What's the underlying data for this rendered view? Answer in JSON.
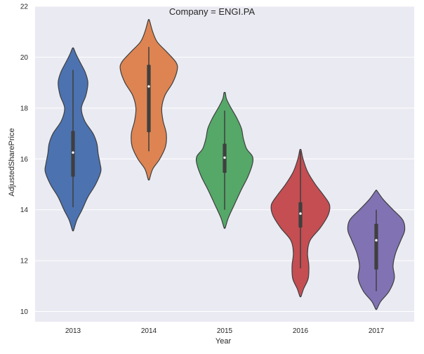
{
  "chart_data": {
    "type": "violin",
    "title": "Company = ENGI.PA",
    "xlabel": "Year",
    "ylabel": "AdjustedSharePrice",
    "ylim": [
      9.6,
      22
    ],
    "yticks": [
      10,
      12,
      14,
      16,
      18,
      20,
      22
    ],
    "grid": true,
    "background": "#eaeaf2",
    "categories": [
      "2013",
      "2014",
      "2015",
      "2016",
      "2017"
    ],
    "violins": [
      {
        "category": "2013",
        "color": "#4c72b0",
        "median": 16.25,
        "q1": 15.3,
        "q3": 17.1,
        "whisker_low": 14.1,
        "whisker_high": 19.5,
        "profile": [
          [
            13.2,
            0.02
          ],
          [
            13.6,
            0.12
          ],
          [
            14.0,
            0.28
          ],
          [
            14.5,
            0.46
          ],
          [
            15.0,
            0.7
          ],
          [
            15.5,
            0.86
          ],
          [
            15.8,
            0.84
          ],
          [
            16.2,
            0.78
          ],
          [
            16.6,
            0.74
          ],
          [
            17.0,
            0.62
          ],
          [
            17.5,
            0.36
          ],
          [
            18.0,
            0.26
          ],
          [
            18.5,
            0.4
          ],
          [
            19.0,
            0.46
          ],
          [
            19.4,
            0.38
          ],
          [
            19.8,
            0.22
          ],
          [
            20.1,
            0.1
          ],
          [
            20.35,
            0.02
          ]
        ]
      },
      {
        "category": "2014",
        "color": "#dd8452",
        "median": 18.85,
        "q1": 17.05,
        "q3": 19.7,
        "whisker_low": 16.3,
        "whisker_high": 20.4,
        "profile": [
          [
            15.2,
            0.02
          ],
          [
            15.6,
            0.12
          ],
          [
            16.0,
            0.34
          ],
          [
            16.5,
            0.52
          ],
          [
            17.0,
            0.54
          ],
          [
            17.5,
            0.44
          ],
          [
            18.0,
            0.4
          ],
          [
            18.5,
            0.5
          ],
          [
            19.0,
            0.74
          ],
          [
            19.5,
            0.88
          ],
          [
            19.8,
            0.84
          ],
          [
            20.2,
            0.56
          ],
          [
            20.6,
            0.26
          ],
          [
            21.0,
            0.12
          ],
          [
            21.45,
            0.02
          ]
        ]
      },
      {
        "category": "2015",
        "color": "#55a868",
        "median": 16.05,
        "q1": 15.45,
        "q3": 16.6,
        "whisker_low": 14.0,
        "whisker_high": 17.9,
        "profile": [
          [
            13.3,
            0.02
          ],
          [
            13.7,
            0.12
          ],
          [
            14.2,
            0.3
          ],
          [
            14.8,
            0.52
          ],
          [
            15.3,
            0.72
          ],
          [
            15.8,
            0.86
          ],
          [
            16.1,
            0.86
          ],
          [
            16.4,
            0.68
          ],
          [
            16.8,
            0.58
          ],
          [
            17.2,
            0.52
          ],
          [
            17.6,
            0.38
          ],
          [
            18.0,
            0.2
          ],
          [
            18.35,
            0.06
          ],
          [
            18.6,
            0.02
          ]
        ]
      },
      {
        "category": "2016",
        "color": "#c44e52",
        "median": 13.85,
        "q1": 13.3,
        "q3": 14.3,
        "whisker_low": 11.7,
        "whisker_high": 16.3,
        "profile": [
          [
            10.6,
            0.02
          ],
          [
            10.9,
            0.1
          ],
          [
            11.3,
            0.24
          ],
          [
            11.8,
            0.26
          ],
          [
            12.3,
            0.22
          ],
          [
            12.8,
            0.3
          ],
          [
            13.3,
            0.62
          ],
          [
            13.8,
            0.86
          ],
          [
            14.2,
            0.9
          ],
          [
            14.6,
            0.7
          ],
          [
            15.0,
            0.46
          ],
          [
            15.5,
            0.22
          ],
          [
            16.0,
            0.08
          ],
          [
            16.35,
            0.02
          ]
        ]
      },
      {
        "category": "2017",
        "color": "#8172b3",
        "median": 12.8,
        "q1": 11.65,
        "q3": 13.45,
        "whisker_low": 10.8,
        "whisker_high": 14.0,
        "profile": [
          [
            10.1,
            0.02
          ],
          [
            10.4,
            0.14
          ],
          [
            10.8,
            0.4
          ],
          [
            11.3,
            0.56
          ],
          [
            11.8,
            0.52
          ],
          [
            12.3,
            0.6
          ],
          [
            12.8,
            0.76
          ],
          [
            13.2,
            0.88
          ],
          [
            13.6,
            0.82
          ],
          [
            14.0,
            0.52
          ],
          [
            14.4,
            0.22
          ],
          [
            14.75,
            0.02
          ]
        ]
      }
    ]
  }
}
